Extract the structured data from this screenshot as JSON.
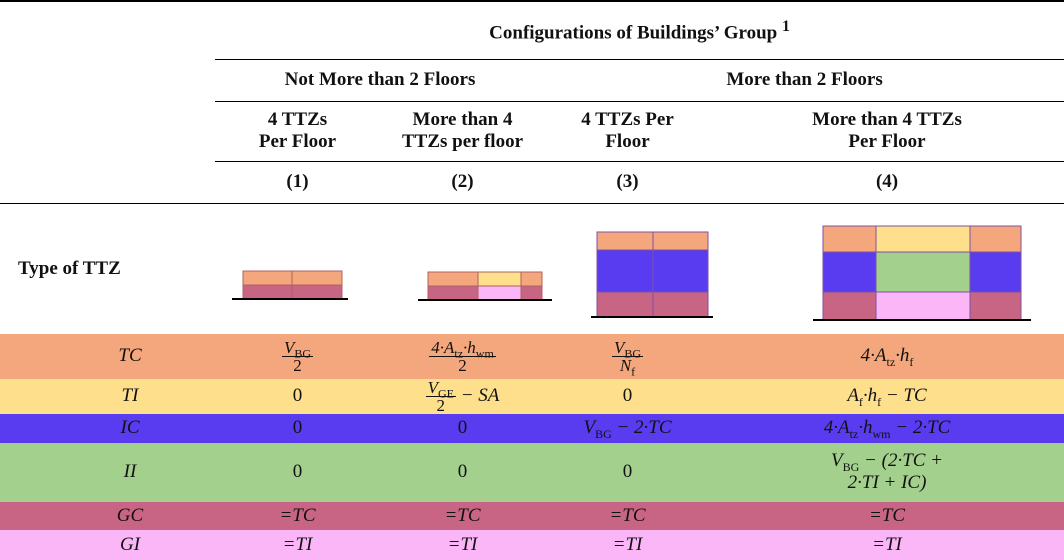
{
  "header": {
    "title": "Configurations of Buildings’ Group",
    "title_note": "1",
    "groups": [
      "Not More than 2 Floors",
      "More than 2 Floors"
    ],
    "columns": [
      [
        "4 TTZs",
        "Per Floor"
      ],
      [
        "More than 4",
        "TTZs per floor"
      ],
      [
        "4 TTZs Per",
        "Floor"
      ],
      [
        "More than 4 TTZs",
        "Per Floor"
      ]
    ],
    "column_numbers": [
      "(1)",
      "(2)",
      "(3)",
      "(4)"
    ],
    "type_row_label": "Type of TTZ"
  },
  "rows": [
    {
      "label": "TC",
      "color": "#f4a77c",
      "cells": [
        [
          [
            {
              "frac": [
                [
                  "V",
                  {
                    "sub": "BG"
                  }
                ],
                [
                  "2"
                ]
              ]
            }
          ]
        ],
        [
          [
            {
              "frac": [
                [
                  "4·A",
                  {
                    "sub": "tz"
                  },
                  "·h",
                  {
                    "sub": "wm"
                  }
                ],
                [
                  "2"
                ]
              ]
            }
          ]
        ],
        [
          [
            {
              "frac": [
                [
                  "V",
                  {
                    "sub": "BG"
                  }
                ],
                [
                  "N",
                  {
                    "sub": "f"
                  }
                ]
              ]
            }
          ]
        ],
        [
          [
            "4·A",
            {
              "sub": "tz"
            },
            "·h",
            {
              "sub": "f"
            }
          ]
        ]
      ]
    },
    {
      "label": "TI",
      "color": "#fddf8c",
      "cells": [
        [
          [
            "0"
          ]
        ],
        [
          [
            {
              "frac": [
                [
                  "V",
                  {
                    "sub": "GE"
                  }
                ],
                [
                  "2"
                ]
              ]
            },
            " − SA"
          ]
        ],
        [
          [
            "0"
          ]
        ],
        [
          [
            "A",
            {
              "sub": "f"
            },
            "·h",
            {
              "sub": "f"
            },
            " − TC"
          ]
        ]
      ]
    },
    {
      "label": "IC",
      "color": "#5a3cf0",
      "cells": [
        [
          [
            "0"
          ]
        ],
        [
          [
            "0"
          ]
        ],
        [
          [
            "V",
            {
              "sub": "BG"
            },
            " − 2·TC"
          ]
        ],
        [
          [
            "4·A",
            {
              "sub": "tz"
            },
            "·h",
            {
              "sub": "wm"
            },
            " − 2·TC"
          ]
        ]
      ]
    },
    {
      "label": "II",
      "color": "#a3d18d",
      "cells": [
        [
          [
            "0"
          ]
        ],
        [
          [
            "0"
          ]
        ],
        [
          [
            "0"
          ]
        ],
        [
          [
            "V",
            {
              "sub": "BG"
            },
            " − (2·TC +"
          ],
          [
            "2·TI + IC)"
          ]
        ]
      ]
    },
    {
      "label": "GC",
      "color": "#c86584",
      "cells": [
        [
          [
            "=TC"
          ]
        ],
        [
          [
            "=TC"
          ]
        ],
        [
          [
            "=TC"
          ]
        ],
        [
          [
            "=TC"
          ]
        ]
      ]
    },
    {
      "label": "GI",
      "color": "#fbb6f8",
      "cells": [
        [
          [
            "=TI"
          ]
        ],
        [
          [
            "=TI"
          ]
        ],
        [
          [
            "=TI"
          ]
        ],
        [
          [
            "=TI"
          ]
        ]
      ]
    }
  ]
}
